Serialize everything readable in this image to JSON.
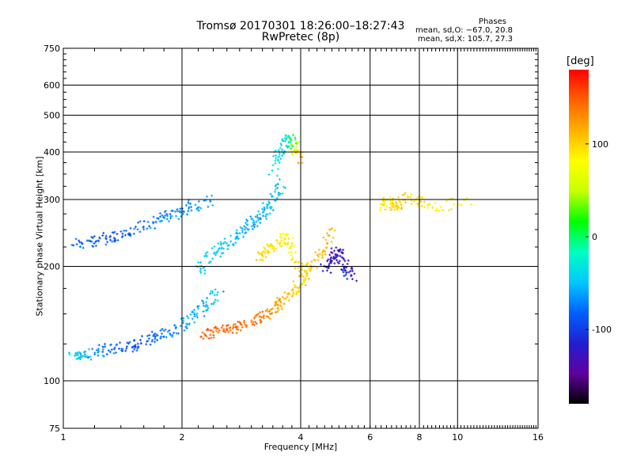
{
  "title": {
    "line1": "Tromsø 20170301 18:26:00–18:27:43",
    "line2": "RwPretec (8p)"
  },
  "phases": {
    "heading": "Phases",
    "o_stats": "mean, sd,O: −67.0, 20.8",
    "x_stats": "mean, sd,X: 105.7, 27.3"
  },
  "chart_data": {
    "type": "scatter",
    "xlabel": "Frequency [MHz]",
    "ylabel": "Stationary phase Virtual Height [km]",
    "x_scale": "log",
    "y_scale": "log",
    "xlim": [
      1,
      16
    ],
    "ylim": [
      75,
      750
    ],
    "x_ticks": [
      1,
      2,
      4,
      6,
      8,
      10,
      16
    ],
    "y_ticks": [
      75,
      100,
      200,
      300,
      400,
      500,
      600,
      750
    ],
    "x_gridlines": [
      2,
      4,
      6,
      8,
      10
    ],
    "y_gridlines": [
      100,
      200,
      300,
      400,
      500,
      600
    ],
    "grid": true,
    "colorbar": {
      "unit": "[deg]",
      "range": [
        -180,
        180
      ],
      "ticks": [
        -100,
        0,
        100
      ],
      "colormap": [
        "#000000",
        "#6000a0",
        "#2020d0",
        "#0060ff",
        "#00c8ff",
        "#00ffc0",
        "#00ff00",
        "#c8ff00",
        "#ffff00",
        "#ffb000",
        "#ff6000",
        "#ff0000"
      ]
    },
    "series": [
      {
        "x": [
          1.05,
          1.12,
          1.25,
          1.4,
          1.55,
          1.7,
          1.9,
          2.1,
          2.3,
          2.5
        ],
        "y": [
          115,
          117,
          120,
          122,
          125,
          130,
          136,
          145,
          158,
          175
        ],
        "phase": [
          -45,
          -50,
          -70,
          -85,
          -90,
          -80,
          -70,
          -60,
          -55,
          -50
        ]
      },
      {
        "x": [
          1.08,
          1.2,
          1.35,
          1.5,
          1.7,
          1.9,
          2.1,
          2.35
        ],
        "y": [
          228,
          232,
          240,
          250,
          262,
          275,
          288,
          298
        ],
        "phase": [
          -75,
          -85,
          -90,
          -80,
          -75,
          -70,
          -65,
          -60
        ]
      },
      {
        "x": [
          2.2,
          2.4,
          2.6,
          2.8,
          3.0,
          3.2,
          3.4,
          3.6
        ],
        "y": [
          195,
          215,
          230,
          245,
          260,
          275,
          300,
          330
        ],
        "phase": [
          -45,
          -45,
          -50,
          -55,
          -60,
          -55,
          -50,
          -45
        ]
      },
      {
        "x": [
          2.25,
          2.45,
          2.7,
          2.95,
          3.2,
          3.45,
          3.7,
          3.9,
          4.1
        ],
        "y": [
          132,
          135,
          138,
          142,
          148,
          155,
          165,
          175,
          190
        ],
        "phase": [
          150,
          148,
          145,
          140,
          135,
          120,
          110,
          100,
          105
        ]
      },
      {
        "x": [
          3.1,
          3.3,
          3.5,
          3.7,
          3.9,
          4.2,
          4.5,
          4.8
        ],
        "y": [
          210,
          220,
          230,
          240,
          200,
          195,
          215,
          250
        ],
        "phase": [
          100,
          95,
          90,
          85,
          95,
          105,
          110,
          115
        ]
      },
      {
        "x": [
          3.4,
          3.55,
          3.7,
          3.85,
          4.0
        ],
        "y": [
          350,
          400,
          440,
          415,
          380
        ],
        "phase": [
          -35,
          -40,
          -45,
          40,
          140
        ]
      },
      {
        "x": [
          4.6,
          4.8,
          5.0,
          5.2,
          5.4
        ],
        "y": [
          195,
          210,
          220,
          200,
          185
        ],
        "phase": [
          -120,
          -125,
          -130,
          -120,
          -115
        ]
      },
      {
        "x": [
          6.5,
          6.7,
          7.0,
          7.5,
          8.5,
          10.8
        ],
        "y": [
          290,
          300,
          285,
          310,
          285,
          300
        ],
        "phase": [
          90,
          85,
          100,
          95,
          90,
          80
        ]
      }
    ]
  }
}
